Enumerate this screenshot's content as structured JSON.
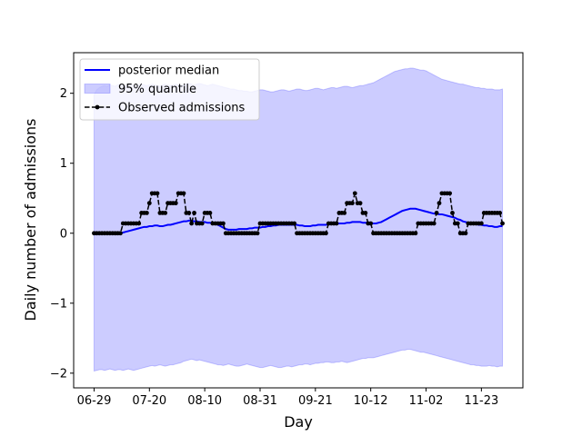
{
  "chart_data": {
    "type": "line",
    "xlabel": "Day",
    "ylabel": "Daily number of admissions",
    "x": [
      "06-29",
      "06-30",
      "07-01",
      "07-02",
      "07-03",
      "07-04",
      "07-05",
      "07-06",
      "07-07",
      "07-08",
      "07-09",
      "07-10",
      "07-11",
      "07-12",
      "07-13",
      "07-14",
      "07-15",
      "07-16",
      "07-17",
      "07-18",
      "07-19",
      "07-20",
      "07-21",
      "07-22",
      "07-23",
      "07-24",
      "07-25",
      "07-26",
      "07-27",
      "07-28",
      "07-29",
      "07-30",
      "07-31",
      "08-01",
      "08-02",
      "08-03",
      "08-04",
      "08-05",
      "08-06",
      "08-07",
      "08-08",
      "08-09",
      "08-10",
      "08-11",
      "08-12",
      "08-13",
      "08-14",
      "08-15",
      "08-16",
      "08-17",
      "08-18",
      "08-19",
      "08-20",
      "08-21",
      "08-22",
      "08-23",
      "08-24",
      "08-25",
      "08-26",
      "08-27",
      "08-28",
      "08-29",
      "08-30",
      "08-31",
      "09-01",
      "09-02",
      "09-03",
      "09-04",
      "09-05",
      "09-06",
      "09-07",
      "09-08",
      "09-09",
      "09-10",
      "09-11",
      "09-12",
      "09-13",
      "09-14",
      "09-15",
      "09-16",
      "09-17",
      "09-18",
      "09-19",
      "09-20",
      "09-21",
      "09-22",
      "09-23",
      "09-24",
      "09-25",
      "09-26",
      "09-27",
      "09-28",
      "09-29",
      "09-30",
      "10-01",
      "10-02",
      "10-03",
      "10-04",
      "10-05",
      "10-06",
      "10-07",
      "10-08",
      "10-09",
      "10-10",
      "10-11",
      "10-12",
      "10-13",
      "10-14",
      "10-15",
      "10-16",
      "10-17",
      "10-18",
      "10-19",
      "10-20",
      "10-21",
      "10-22",
      "10-23",
      "10-24",
      "10-25",
      "10-26",
      "10-27",
      "10-28",
      "10-29",
      "10-30",
      "10-31",
      "11-01",
      "11-02",
      "11-03",
      "11-04",
      "11-05",
      "11-06",
      "11-07",
      "11-08",
      "11-09",
      "11-10",
      "11-11",
      "11-12",
      "11-13",
      "11-14",
      "11-15",
      "11-16",
      "11-17",
      "11-18",
      "11-19",
      "11-20",
      "11-21",
      "11-22",
      "11-23",
      "11-24",
      "11-25",
      "11-26",
      "11-27",
      "11-28",
      "11-29",
      "11-30",
      "12-01"
    ],
    "xticks": [
      "06-29",
      "07-20",
      "08-10",
      "08-31",
      "09-21",
      "10-12",
      "11-02",
      "11-23"
    ],
    "ylim": [
      -2.21,
      2.58
    ],
    "yticks": [
      {
        "value": -2,
        "label": "−2"
      },
      {
        "value": -1,
        "label": "−1"
      },
      0,
      1,
      2
    ],
    "legend": "upper left",
    "series": [
      {
        "name": "posterior median",
        "color": "#0000ff",
        "style": "solid",
        "values": [
          0,
          0,
          0,
          0,
          0,
          0,
          0,
          0,
          0,
          0,
          0,
          0.01,
          0.02,
          0.03,
          0.04,
          0.05,
          0.06,
          0.07,
          0.08,
          0.09,
          0.09,
          0.1,
          0.1,
          0.11,
          0.11,
          0.1,
          0.1,
          0.11,
          0.12,
          0.12,
          0.13,
          0.14,
          0.15,
          0.16,
          0.17,
          0.17,
          0.18,
          0.18,
          0.17,
          0.17,
          0.16,
          0.16,
          0.16,
          0.15,
          0.15,
          0.14,
          0.13,
          0.12,
          0.1,
          0.08,
          0.06,
          0.05,
          0.05,
          0.05,
          0.05,
          0.06,
          0.06,
          0.06,
          0.06,
          0.07,
          0.07,
          0.08,
          0.08,
          0.08,
          0.09,
          0.09,
          0.1,
          0.1,
          0.11,
          0.11,
          0.12,
          0.12,
          0.12,
          0.12,
          0.12,
          0.12,
          0.12,
          0.12,
          0.11,
          0.11,
          0.1,
          0.1,
          0.1,
          0.11,
          0.11,
          0.12,
          0.12,
          0.12,
          0.12,
          0.13,
          0.13,
          0.13,
          0.13,
          0.14,
          0.14,
          0.14,
          0.15,
          0.15,
          0.16,
          0.16,
          0.16,
          0.16,
          0.15,
          0.15,
          0.15,
          0.14,
          0.14,
          0.14,
          0.15,
          0.16,
          0.18,
          0.2,
          0.22,
          0.24,
          0.26,
          0.28,
          0.3,
          0.32,
          0.33,
          0.34,
          0.35,
          0.35,
          0.35,
          0.34,
          0.33,
          0.32,
          0.31,
          0.3,
          0.29,
          0.28,
          0.28,
          0.27,
          0.27,
          0.26,
          0.25,
          0.24,
          0.23,
          0.22,
          0.2,
          0.19,
          0.17,
          0.16,
          0.15,
          0.14,
          0.14,
          0.13,
          0.12,
          0.12,
          0.11,
          0.11,
          0.1,
          0.1,
          0.09,
          0.09,
          0.1,
          0.1
        ]
      },
      {
        "name": "95% quantile",
        "color": "#0000ff",
        "style": "band",
        "upper": [
          1.98,
          2.05,
          2.08,
          2.1,
          2.11,
          2.1,
          2.12,
          2.11,
          2.1,
          2.12,
          2.13,
          2.12,
          2.11,
          2.12,
          2.13,
          2.12,
          2.11,
          2.12,
          2.13,
          2.12,
          2.11,
          2.12,
          2.13,
          2.12,
          2.11,
          2.1,
          2.12,
          2.13,
          2.12,
          2.11,
          2.12,
          2.13,
          2.12,
          2.11,
          2.12,
          2.13,
          2.14,
          2.13,
          2.12,
          2.13,
          2.14,
          2.13,
          2.12,
          2.11,
          2.12,
          2.13,
          2.12,
          2.11,
          2.1,
          2.09,
          2.08,
          2.07,
          2.06,
          2.06,
          2.05,
          2.04,
          2.04,
          2.03,
          2.03,
          2.02,
          2.02,
          2.03,
          2.04,
          2.05,
          2.05,
          2.04,
          2.03,
          2.02,
          2.02,
          2.03,
          2.04,
          2.05,
          2.05,
          2.04,
          2.03,
          2.04,
          2.05,
          2.06,
          2.06,
          2.05,
          2.04,
          2.04,
          2.05,
          2.06,
          2.07,
          2.07,
          2.06,
          2.05,
          2.06,
          2.07,
          2.08,
          2.08,
          2.07,
          2.08,
          2.09,
          2.1,
          2.1,
          2.09,
          2.08,
          2.09,
          2.1,
          2.11,
          2.11,
          2.12,
          2.13,
          2.14,
          2.15,
          2.17,
          2.19,
          2.21,
          2.23,
          2.25,
          2.27,
          2.29,
          2.31,
          2.32,
          2.33,
          2.34,
          2.35,
          2.35,
          2.36,
          2.36,
          2.35,
          2.34,
          2.33,
          2.33,
          2.32,
          2.3,
          2.28,
          2.26,
          2.24,
          2.22,
          2.2,
          2.19,
          2.18,
          2.17,
          2.16,
          2.15,
          2.14,
          2.13,
          2.13,
          2.12,
          2.11,
          2.1,
          2.09,
          2.08,
          2.08,
          2.07,
          2.07,
          2.06,
          2.06,
          2.06,
          2.05,
          2.05,
          2.05,
          2.06
        ],
        "lower": [
          -1.97,
          -1.96,
          -1.95,
          -1.95,
          -1.96,
          -1.95,
          -1.94,
          -1.95,
          -1.96,
          -1.95,
          -1.95,
          -1.96,
          -1.95,
          -1.94,
          -1.95,
          -1.96,
          -1.95,
          -1.94,
          -1.93,
          -1.92,
          -1.91,
          -1.9,
          -1.89,
          -1.9,
          -1.89,
          -1.88,
          -1.89,
          -1.9,
          -1.89,
          -1.88,
          -1.88,
          -1.87,
          -1.86,
          -1.85,
          -1.83,
          -1.82,
          -1.81,
          -1.8,
          -1.81,
          -1.82,
          -1.81,
          -1.82,
          -1.83,
          -1.84,
          -1.85,
          -1.86,
          -1.87,
          -1.88,
          -1.88,
          -1.89,
          -1.88,
          -1.87,
          -1.88,
          -1.89,
          -1.9,
          -1.9,
          -1.89,
          -1.88,
          -1.87,
          -1.88,
          -1.89,
          -1.9,
          -1.91,
          -1.92,
          -1.92,
          -1.91,
          -1.9,
          -1.89,
          -1.9,
          -1.91,
          -1.92,
          -1.92,
          -1.91,
          -1.9,
          -1.9,
          -1.91,
          -1.9,
          -1.89,
          -1.88,
          -1.88,
          -1.87,
          -1.87,
          -1.88,
          -1.87,
          -1.86,
          -1.86,
          -1.85,
          -1.85,
          -1.84,
          -1.84,
          -1.85,
          -1.85,
          -1.84,
          -1.84,
          -1.83,
          -1.84,
          -1.85,
          -1.84,
          -1.83,
          -1.82,
          -1.81,
          -1.8,
          -1.79,
          -1.79,
          -1.78,
          -1.78,
          -1.78,
          -1.77,
          -1.76,
          -1.75,
          -1.74,
          -1.73,
          -1.72,
          -1.71,
          -1.7,
          -1.69,
          -1.68,
          -1.67,
          -1.67,
          -1.66,
          -1.66,
          -1.67,
          -1.68,
          -1.69,
          -1.7,
          -1.7,
          -1.71,
          -1.72,
          -1.73,
          -1.74,
          -1.75,
          -1.76,
          -1.77,
          -1.78,
          -1.79,
          -1.8,
          -1.81,
          -1.82,
          -1.83,
          -1.84,
          -1.85,
          -1.86,
          -1.87,
          -1.88,
          -1.88,
          -1.89,
          -1.89,
          -1.9,
          -1.9,
          -1.9,
          -1.89,
          -1.9,
          -1.9,
          -1.91,
          -1.9,
          -1.9
        ]
      },
      {
        "name": "Observed admissions",
        "color": "#000000",
        "style": "dashed-dots",
        "values": [
          0,
          0,
          0,
          0,
          0,
          0,
          0,
          0,
          0,
          0,
          0,
          0.14,
          0.14,
          0.14,
          0.14,
          0.14,
          0.14,
          0.14,
          0.29,
          0.29,
          0.29,
          0.43,
          0.57,
          0.57,
          0.57,
          0.29,
          0.29,
          0.29,
          0.43,
          0.43,
          0.43,
          0.43,
          0.57,
          0.57,
          0.57,
          0.29,
          0.29,
          0.14,
          0.29,
          0.14,
          0.14,
          0.14,
          0.29,
          0.29,
          0.29,
          0.14,
          0.14,
          0.14,
          0.14,
          0.14,
          0,
          0,
          0,
          0,
          0,
          0,
          0,
          0,
          0,
          0,
          0,
          0,
          0,
          0.14,
          0.14,
          0.14,
          0.14,
          0.14,
          0.14,
          0.14,
          0.14,
          0.14,
          0.14,
          0.14,
          0.14,
          0.14,
          0.14,
          0,
          0,
          0,
          0,
          0,
          0,
          0,
          0,
          0,
          0,
          0,
          0,
          0.14,
          0.14,
          0.14,
          0.14,
          0.29,
          0.29,
          0.29,
          0.43,
          0.43,
          0.43,
          0.57,
          0.43,
          0.43,
          0.29,
          0.29,
          0.14,
          0.14,
          0,
          0,
          0,
          0,
          0,
          0,
          0,
          0,
          0,
          0,
          0,
          0,
          0,
          0,
          0,
          0,
          0,
          0.14,
          0.14,
          0.14,
          0.14,
          0.14,
          0.14,
          0.14,
          0.29,
          0.43,
          0.57,
          0.57,
          0.57,
          0.57,
          0.29,
          0.14,
          0.14,
          0,
          0,
          0,
          0.14,
          0.14,
          0.14,
          0.14,
          0.14,
          0.14,
          0.29,
          0.29,
          0.29,
          0.29,
          0.29,
          0.29,
          0.29,
          0.14
        ]
      }
    ]
  }
}
